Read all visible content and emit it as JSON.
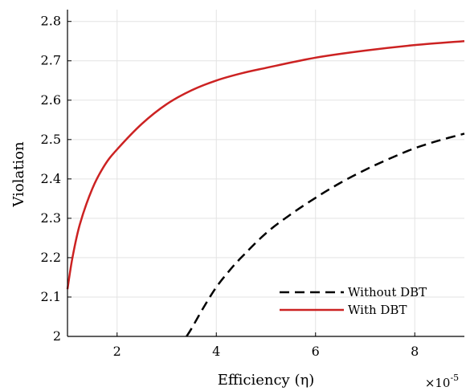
{
  "chart_data": {
    "type": "line",
    "xlabel": "Efficiency (η)",
    "ylabel": "Violation",
    "x_multiplier_label": "×10",
    "x_multiplier_exp": "-5",
    "xlim": [
      1,
      9
    ],
    "ylim": [
      2,
      2.83
    ],
    "xticks": [
      2,
      4,
      6,
      8
    ],
    "yticks": [
      2,
      2.1,
      2.2,
      2.3,
      2.4,
      2.5,
      2.6,
      2.7,
      2.8
    ],
    "ytick_labels": [
      "2",
      "2.1",
      "2.2",
      "2.3",
      "2.4",
      "2.5",
      "2.6",
      "2.7",
      "2.8"
    ],
    "grid": true,
    "legend_position": "bottom-right",
    "series": [
      {
        "name": "Without DBT",
        "color": "#000000",
        "style": "dashed",
        "x": [
          3.4,
          3.5,
          3.75,
          4.0,
          4.25,
          4.5,
          5.0,
          5.5,
          6.0,
          6.5,
          7.0,
          7.5,
          8.0,
          8.5,
          9.0
        ],
        "y": [
          2.0,
          2.02,
          2.075,
          2.125,
          2.165,
          2.2,
          2.262,
          2.31,
          2.352,
          2.39,
          2.423,
          2.452,
          2.478,
          2.498,
          2.515
        ]
      },
      {
        "name": "With DBT",
        "color": "#cc2222",
        "style": "solid",
        "x": [
          1.0,
          1.1,
          1.25,
          1.5,
          1.75,
          2.0,
          2.5,
          3.0,
          3.5,
          4.0,
          4.5,
          5.0,
          6.0,
          7.0,
          8.0,
          9.0
        ],
        "y": [
          2.12,
          2.2,
          2.285,
          2.375,
          2.435,
          2.475,
          2.54,
          2.59,
          2.625,
          2.65,
          2.668,
          2.682,
          2.708,
          2.726,
          2.74,
          2.75
        ]
      }
    ]
  }
}
